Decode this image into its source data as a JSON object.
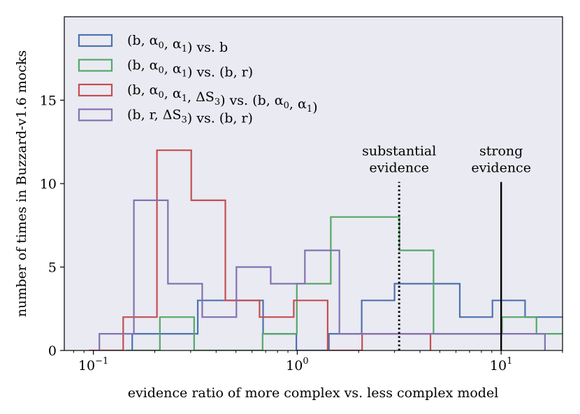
{
  "chart_data": {
    "type": "histogram",
    "xscale": "log",
    "xlim": [
      0.072,
      20
    ],
    "ylim": [
      0,
      20
    ],
    "xlabel": "evidence ratio of more complex vs. less complex model",
    "ylabel": "number of times in Buzzard-v1.6 mocks",
    "x_ticks": [
      {
        "value": 0.1,
        "base": "10",
        "exp": "−1"
      },
      {
        "value": 1,
        "base": "10",
        "exp": "0"
      },
      {
        "value": 10,
        "base": "10",
        "exp": "1"
      }
    ],
    "y_ticks": [
      {
        "value": 0,
        "label": "0"
      },
      {
        "value": 5,
        "label": "5"
      },
      {
        "value": 10,
        "label": "10"
      },
      {
        "value": 15,
        "label": "15"
      }
    ],
    "legend_position": "top-left",
    "series": [
      {
        "name": "(b, α0, α1) vs. b",
        "color": "#4c72b0",
        "edges": [
          0.155,
          0.225,
          0.325,
          0.47,
          0.68,
          0.99,
          1.43,
          2.07,
          3.0,
          4.33,
          6.27,
          9.06,
          13.1,
          19.0,
          27.5
        ],
        "counts": [
          1,
          1,
          3,
          3,
          1,
          0,
          1,
          3,
          4,
          4,
          2,
          3,
          2,
          2
        ]
      },
      {
        "name": "(b, α0, α1) vs. (b, r)",
        "color": "#55a868",
        "edges": [
          0.144,
          0.212,
          0.312,
          0.46,
          0.676,
          0.995,
          1.46,
          2.15,
          3.17,
          4.66,
          6.86,
          10.1,
          14.9,
          21.9
        ],
        "counts": [
          0,
          2,
          0,
          0,
          1,
          4,
          8,
          8,
          6,
          1,
          1,
          2,
          1
        ]
      },
      {
        "name": "(b, α0, α1, ΔS3) vs. (b, α0, α1)",
        "color": "#c44e52",
        "edges": [
          0.095,
          0.14,
          0.205,
          0.302,
          0.444,
          0.653,
          0.961,
          1.41,
          2.08,
          3.06,
          4.5
        ],
        "counts": [
          0,
          2,
          12,
          9,
          3,
          2,
          3,
          0,
          1,
          1
        ]
      },
      {
        "name": "(b, r, ΔS3) vs. (b, r)",
        "color": "#8172b2",
        "edges": [
          0.107,
          0.158,
          0.232,
          0.342,
          0.503,
          0.741,
          1.09,
          1.61,
          2.37,
          3.49,
          5.14,
          7.57,
          11.1,
          16.4
        ],
        "counts": [
          1,
          9,
          4,
          2,
          5,
          4,
          6,
          1,
          1,
          1,
          1,
          1,
          1
        ]
      }
    ],
    "annotations": [
      {
        "x": 3.16,
        "line_top": 10.1,
        "style": "dotted",
        "lines": [
          "substantial",
          "evidence"
        ]
      },
      {
        "x": 10,
        "line_top": 10.1,
        "style": "solid",
        "lines": [
          "strong",
          "evidence"
        ]
      }
    ],
    "legend": [
      {
        "color": "#4c72b0",
        "math": [
          {
            "t": "(b, α"
          },
          {
            "sub": "0"
          },
          {
            "t": ", α"
          },
          {
            "sub": "1"
          },
          {
            "t": ")"
          }
        ],
        "tail": [
          {
            "t": " vs. "
          },
          {
            "t": "b"
          }
        ]
      },
      {
        "color": "#55a868",
        "math": [
          {
            "t": "(b, α"
          },
          {
            "sub": "0"
          },
          {
            "t": ", α"
          },
          {
            "sub": "1"
          },
          {
            "t": ")"
          }
        ],
        "tail": [
          {
            "t": " vs. "
          },
          {
            "t": "(b, r)"
          }
        ]
      },
      {
        "color": "#c44e52",
        "math": [
          {
            "t": "(b, α"
          },
          {
            "sub": "0"
          },
          {
            "t": ", α"
          },
          {
            "sub": "1"
          },
          {
            "t": ", ΔS"
          },
          {
            "sub": "3"
          },
          {
            "t": ")"
          }
        ],
        "tail": [
          {
            "t": " vs. "
          },
          {
            "t": "(b, α"
          },
          {
            "sub": "0"
          },
          {
            "t": ", α"
          },
          {
            "sub": "1"
          },
          {
            "t": ")"
          }
        ]
      },
      {
        "color": "#8172b2",
        "math": [
          {
            "t": "(b, r, ΔS"
          },
          {
            "sub": "3"
          },
          {
            "t": ")"
          }
        ],
        "tail": [
          {
            "t": " vs. "
          },
          {
            "t": "(b, r)"
          }
        ]
      }
    ]
  }
}
